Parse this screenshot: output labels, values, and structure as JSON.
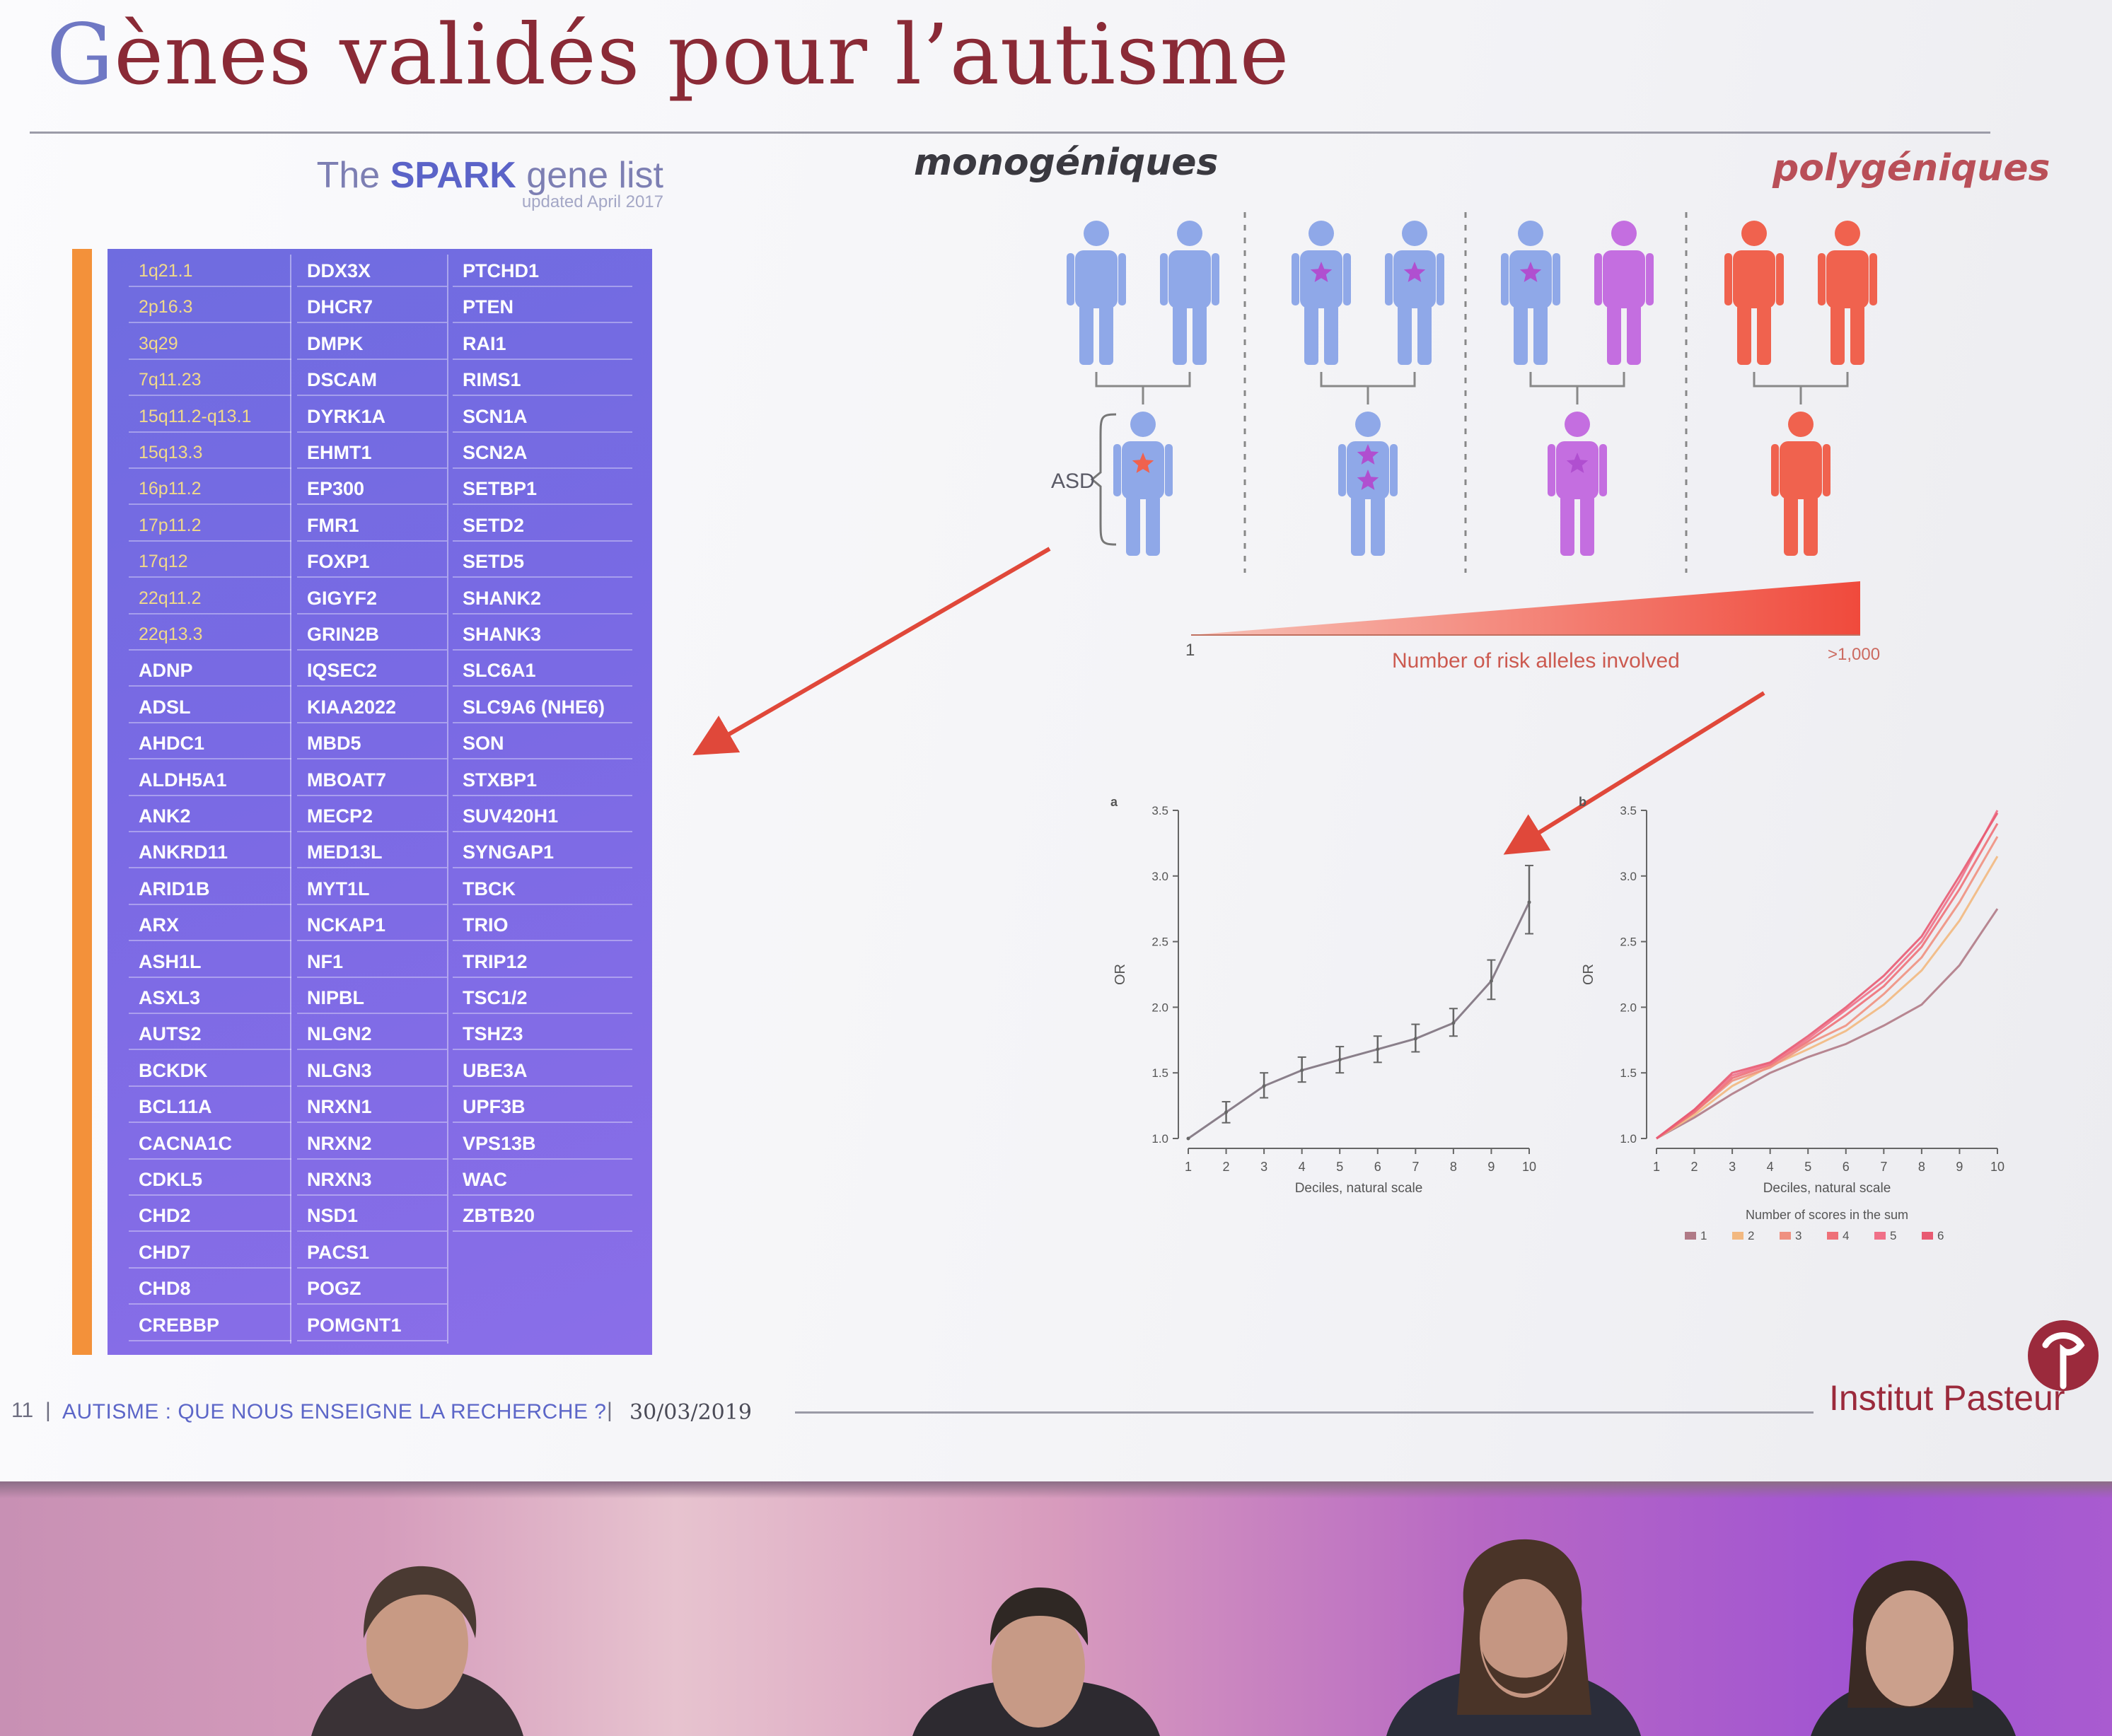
{
  "slide": {
    "title_first_letter": "G",
    "title_rest": "ènes validés pour l’autisme",
    "spark": {
      "title_prefix": "The ",
      "title_brand": "SPARK",
      "title_suffix": " gene list",
      "updated": "updated April 2017"
    },
    "gene_columns": [
      [
        "1q21.1",
        "2p16.3",
        "3q29",
        "7q11.23",
        "15q11.2-q13.1",
        "15q13.3",
        "16p11.2",
        "17p11.2",
        "17q12",
        "22q11.2",
        "22q13.3",
        "ADNP",
        "ADSL",
        "AHDC1",
        "ALDH5A1",
        "ANK2",
        "ANKRD11",
        "ARID1B",
        "ARX",
        "ASH1L",
        "ASXL3",
        "AUTS2",
        "BCKDK",
        "BCL11A",
        "CACNA1C",
        "CDKL5",
        "CHD2",
        "CHD7",
        "CHD8",
        "CREBBP"
      ],
      [
        "DDX3X",
        "DHCR7",
        "DMPK",
        "DSCAM",
        "DYRK1A",
        "EHMT1",
        "EP300",
        "FMR1",
        "FOXP1",
        "GIGYF2",
        "GRIN2B",
        "IQSEC2",
        "KIAA2022",
        "MBD5",
        "MBOAT7",
        "MECP2",
        "MED13L",
        "MYT1L",
        "NCKAP1",
        "NF1",
        "NIPBL",
        "NLGN2",
        "NLGN3",
        "NRXN1",
        "NRXN2",
        "NRXN3",
        "NSD1",
        "PACS1",
        "POGZ",
        "POMGNT1"
      ],
      [
        "PTCHD1",
        "PTEN",
        "RAI1",
        "RIMS1",
        "SCN1A",
        "SCN2A",
        "SETBP1",
        "SETD2",
        "SETD5",
        "SHANK2",
        "SHANK3",
        "SLC6A1",
        "SLC9A6 (NHE6)",
        "SON",
        "STXBP1",
        "SUV420H1",
        "SYNGAP1",
        "TBCK",
        "TRIO",
        "TRIP12",
        "TSC1/2",
        "TSHZ3",
        "UBE3A",
        "UPF3B",
        "VPS13B",
        "WAC",
        "ZBTB20"
      ]
    ],
    "cnv_count": 11,
    "monogenic_label": "monogéniques",
    "polygenic_label": "polygéniques",
    "asd_label": "ASD",
    "alleles_axis": {
      "start": "1",
      "label": "Number of risk alleles involved",
      "end": ">1,000"
    },
    "footer": {
      "page": "11",
      "separator": "|",
      "text": "AUTISME : QUE NOUS ENSEIGNE LA RECHERCHE ?",
      "date": "30/03/2019",
      "institution": "Institut Pasteur"
    },
    "colors": {
      "title": "#8a2a36",
      "title_first": "#6f78c4",
      "table": "#7469e2",
      "orange_bar": "#f3913a",
      "blue_person": "#8fa8e8",
      "purple_person": "#c46ee0",
      "red_person": "#f0624e",
      "star": "#b04fd0",
      "arrow": "#e0483a"
    }
  },
  "chart_data": [
    {
      "type": "line",
      "panel_label": "a",
      "x": [
        1,
        2,
        3,
        4,
        5,
        6,
        7,
        8,
        9,
        10
      ],
      "values": [
        1.0,
        1.2,
        1.4,
        1.52,
        1.6,
        1.68,
        1.76,
        1.88,
        2.2,
        2.8
      ],
      "error_low": [
        1.0,
        1.12,
        1.31,
        1.43,
        1.5,
        1.58,
        1.66,
        1.78,
        2.06,
        2.56
      ],
      "error_high": [
        1.0,
        1.28,
        1.5,
        1.62,
        1.7,
        1.78,
        1.87,
        1.99,
        2.36,
        3.08
      ],
      "xlabel": "Deciles, natural scale",
      "ylabel": "OR",
      "xlim": [
        1,
        10
      ],
      "ylim": [
        1.0,
        3.5
      ],
      "yticks": [
        "1.0",
        "1.5",
        "2.0",
        "2.5",
        "3.0",
        "3.5"
      ],
      "xticks": [
        "1",
        "2",
        "3",
        "4",
        "5",
        "6",
        "7",
        "8",
        "9",
        "10"
      ]
    },
    {
      "type": "line",
      "panel_label": "b",
      "x": [
        1,
        2,
        3,
        4,
        5,
        6,
        7,
        8,
        9,
        10
      ],
      "series": [
        {
          "name": "1",
          "color": "#b07a86",
          "values": [
            1.0,
            1.16,
            1.34,
            1.5,
            1.62,
            1.72,
            1.86,
            2.02,
            2.32,
            2.75
          ]
        },
        {
          "name": "2",
          "color": "#f2b880",
          "values": [
            1.0,
            1.18,
            1.4,
            1.55,
            1.68,
            1.82,
            2.02,
            2.28,
            2.66,
            3.15
          ]
        },
        {
          "name": "3",
          "color": "#ef9080",
          "values": [
            1.0,
            1.2,
            1.44,
            1.54,
            1.72,
            1.86,
            2.1,
            2.38,
            2.8,
            3.3
          ]
        },
        {
          "name": "4",
          "color": "#ee7078",
          "values": [
            1.0,
            1.2,
            1.46,
            1.56,
            1.74,
            1.94,
            2.16,
            2.46,
            2.9,
            3.4
          ]
        },
        {
          "name": "5",
          "color": "#f07088",
          "values": [
            1.0,
            1.22,
            1.48,
            1.57,
            1.76,
            1.98,
            2.2,
            2.5,
            2.96,
            3.5
          ]
        },
        {
          "name": "6",
          "color": "#e85a72",
          "values": [
            1.0,
            1.22,
            1.5,
            1.58,
            1.78,
            2.0,
            2.24,
            2.54,
            3.0,
            3.48
          ]
        }
      ],
      "xlabel": "Deciles, natural scale",
      "ylabel": "OR",
      "legend_title": "Number of scores in the sum",
      "legend_position": "bottom",
      "xlim": [
        1,
        10
      ],
      "ylim": [
        1.0,
        3.5
      ],
      "yticks": [
        "1.0",
        "1.5",
        "2.0",
        "2.5",
        "3.0",
        "3.5"
      ],
      "xticks": [
        "1",
        "2",
        "3",
        "4",
        "5",
        "6",
        "7",
        "8",
        "9",
        "10"
      ]
    }
  ]
}
